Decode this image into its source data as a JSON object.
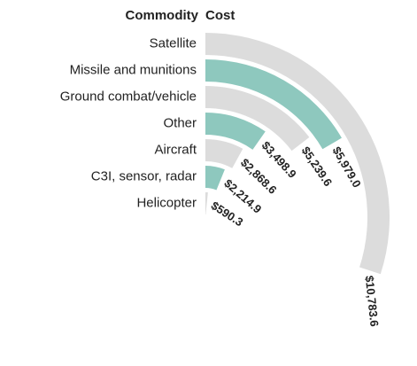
{
  "chart_data": {
    "type": "radial_bar",
    "headers": [
      "Commodity",
      "Cost"
    ],
    "categories": [
      "Satellite",
      "Missile and munitions",
      "Ground combat/vehicle",
      "Other",
      "Aircraft",
      "C3I, sensor, radar",
      "Helicopter"
    ],
    "values": [
      10783.6,
      5979.0,
      5239.6,
      3498.9,
      2868.6,
      2214.9,
      590.3
    ],
    "value_labels": [
      "$10,783.6",
      "$5,979.0",
      "$5,239.6",
      "$3,498.9",
      "$2,868.6",
      "$2,214.9",
      "$590.3"
    ],
    "colors": [
      "#dcdcdc",
      "#8ec8be",
      "#dcdcdc",
      "#8ec8be",
      "#dcdcdc",
      "#8ec8be",
      "#dcdcdc"
    ]
  }
}
